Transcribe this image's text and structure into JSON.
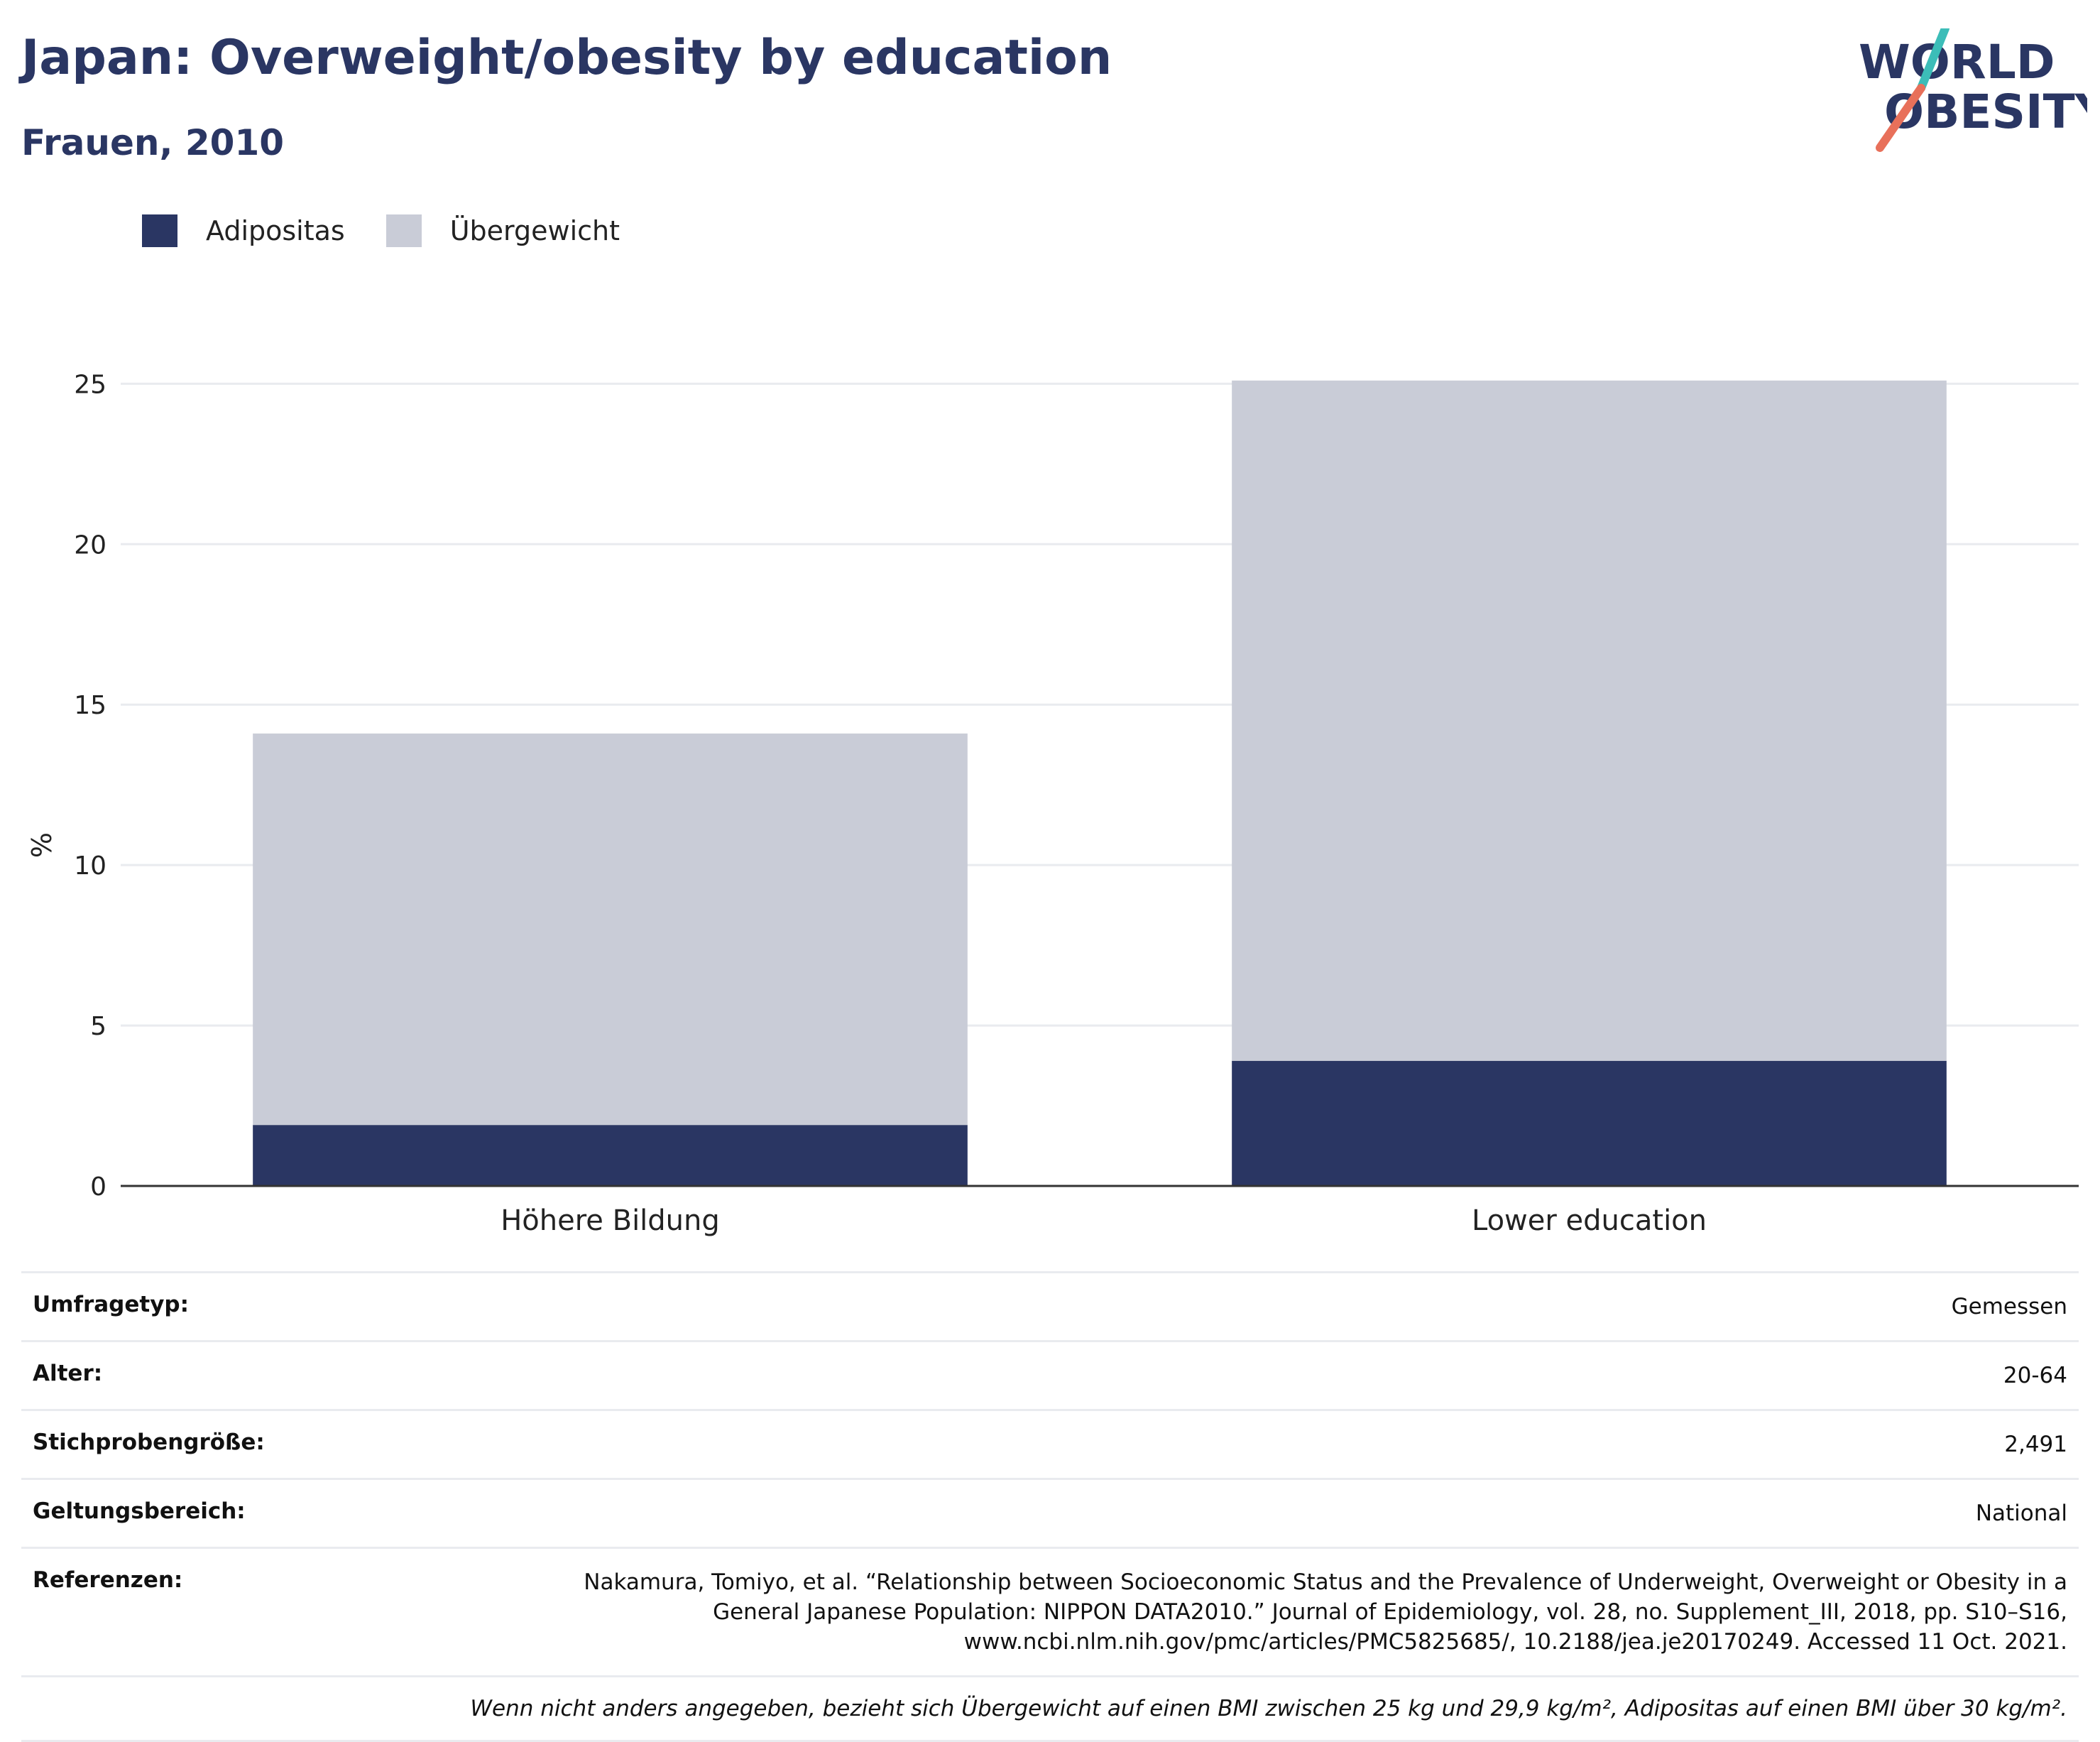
{
  "header": {
    "title": "Japan: Overweight/obesity by education",
    "subtitle": "Frauen, 2010",
    "logo_line1": "WORLD",
    "logo_line2": "OBESITY"
  },
  "legend": [
    {
      "label": "Adipositas",
      "color": "#2a3663"
    },
    {
      "label": "Übergewicht",
      "color": "#c9ccd7"
    }
  ],
  "chart_data": {
    "type": "bar",
    "stacked": true,
    "categories": [
      "Höhere Bildung",
      "Lower education"
    ],
    "series": [
      {
        "name": "Adipositas",
        "values": [
          1.9,
          3.9
        ],
        "color": "#2a3663"
      },
      {
        "name": "Übergewicht",
        "values": [
          12.2,
          21.2
        ],
        "color": "#c9ccd7"
      }
    ],
    "ylabel": "%",
    "ylim": [
      0,
      27
    ],
    "yticks": [
      0,
      5,
      10,
      15,
      20,
      25
    ],
    "grid": true
  },
  "meta": [
    {
      "key": "Umfragetyp:",
      "value": "Gemessen"
    },
    {
      "key": "Alter:",
      "value": "20-64"
    },
    {
      "key": "Stichprobengröße:",
      "value": "2,491"
    },
    {
      "key": "Geltungsbereich:",
      "value": "National"
    },
    {
      "key": "Referenzen:",
      "lines": [
        "Nakamura, Tomiyo, et al. “Relationship between Socioeconomic Status and the Prevalence of Underweight, Overweight or Obesity in a",
        "General Japanese Population: NIPPON DATA2010.” Journal of Epidemiology, vol. 28, no. Supplement_III, 2018, pp. S10–S16,",
        "www.ncbi.nlm.nih.gov/pmc/articles/PMC5825685/, 10.2188/jea.je20170249. Accessed 11 Oct. 2021."
      ]
    }
  ],
  "footnote": "Wenn nicht anders angegeben, bezieht sich Übergewicht auf einen BMI zwischen 25 kg und 29,9 kg/m², Adipositas auf einen BMI über 30 kg/m²."
}
